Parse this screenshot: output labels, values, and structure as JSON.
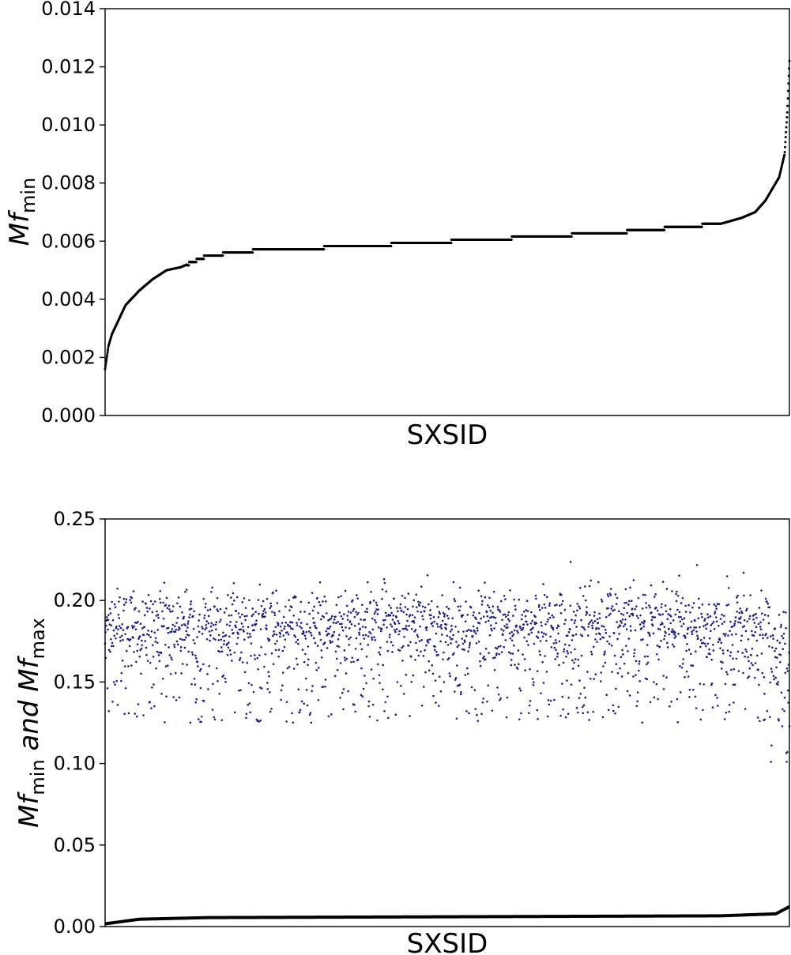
{
  "chart_data": [
    {
      "type": "scatter",
      "xlabel": "SXSID",
      "ylabel": {
        "main": "Mf",
        "sub": "min"
      },
      "ylim": [
        0,
        0.014
      ],
      "yticks": [
        "0.000",
        "0.002",
        "0.004",
        "0.006",
        "0.008",
        "0.010",
        "0.012",
        "0.014"
      ],
      "yticks_values": [
        0,
        0.002,
        0.004,
        0.006,
        0.008,
        0.01,
        0.012,
        0.014
      ],
      "xticks": [],
      "grid": false,
      "color": "#000000",
      "n_points": 2200,
      "series": [
        {
          "description_free": true,
          "x_fraction": [
            0,
            0.005,
            0.01,
            0.02,
            0.03,
            0.05,
            0.07,
            0.09,
            0.11,
            0.13,
            0.15,
            0.19,
            0.23,
            0.29,
            0.35,
            0.43,
            0.51,
            0.59,
            0.67,
            0.75,
            0.8,
            0.85,
            0.9,
            0.93,
            0.95,
            0.965,
            0.975,
            0.985,
            0.993,
            0.997,
            1.0
          ],
          "y": [
            0.0016,
            0.0024,
            0.0028,
            0.0033,
            0.0038,
            0.0043,
            0.0047,
            0.005,
            0.0051,
            0.0053,
            0.0055,
            0.0056,
            0.0057,
            0.00575,
            0.0058,
            0.0059,
            0.006,
            0.0061,
            0.0062,
            0.0063,
            0.0064,
            0.0065,
            0.0066,
            0.0068,
            0.007,
            0.0074,
            0.0078,
            0.0082,
            0.009,
            0.0105,
            0.0122
          ]
        }
      ]
    },
    {
      "type": "scatter",
      "xlabel": "SXSID",
      "ylabel": {
        "main1": "Mf",
        "sub1": "min",
        "mid": " and ",
        "main2": "Mf",
        "sub2": "max"
      },
      "ylim": [
        0,
        0.25
      ],
      "yticks": [
        "0.00",
        "0.05",
        "0.10",
        "0.15",
        "0.20",
        "0.25"
      ],
      "yticks_values": [
        0,
        0.05,
        0.1,
        0.15,
        0.2,
        0.25
      ],
      "xticks": [],
      "grid": false,
      "series": [
        {
          "kind": "Mf_max",
          "color": "#1f1f8a",
          "n_points": 2000,
          "center": 0.185,
          "typical_range": [
            0.125,
            0.23
          ],
          "extremes": [
            0.101,
            0.232
          ]
        },
        {
          "kind": "Mf_min",
          "color": "#000000",
          "x_fraction": [
            0,
            0.05,
            0.15,
            0.5,
            0.9,
            0.98,
            1.0
          ],
          "y": [
            0.0017,
            0.0045,
            0.0055,
            0.006,
            0.0066,
            0.0078,
            0.0122
          ]
        }
      ]
    }
  ]
}
